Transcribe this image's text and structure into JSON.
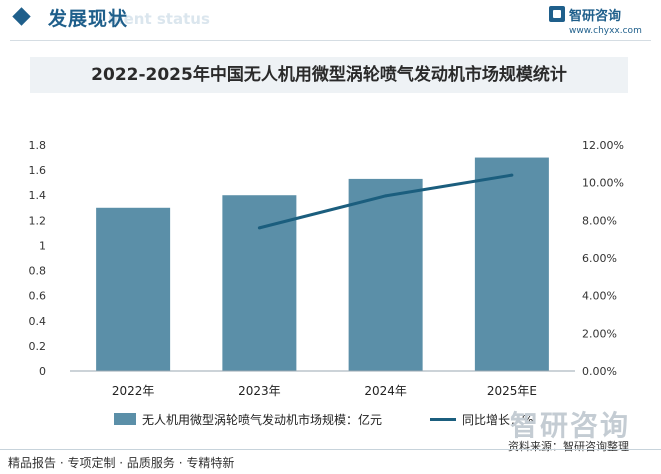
{
  "header": {
    "section_title": "发展现状",
    "section_subtitle": "ment status",
    "brand_name": "智研咨询",
    "brand_url": "www.chyxx.com"
  },
  "colors": {
    "bar": "#5b8fa8",
    "line": "#1b5e7e",
    "accent": "#1f5f8b",
    "title_bar_bg": "#eef2f5"
  },
  "chart_data": {
    "type": "bar",
    "title": "2022-2025年中国无人机用微型涡轮喷气发动机市场规模统计",
    "categories": [
      "2022年",
      "2023年",
      "2024年",
      "2025年E"
    ],
    "series": [
      {
        "name": "无人机用微型涡轮喷气发动机市场规模：亿元",
        "type": "bar",
        "axis": "left",
        "values": [
          1.3,
          1.4,
          1.53,
          1.7
        ]
      },
      {
        "name": "同比增长：%",
        "type": "line",
        "axis": "right",
        "values": [
          null,
          7.6,
          9.3,
          10.4
        ]
      }
    ],
    "y_left": {
      "min": 0,
      "max": 1.8,
      "ticks": [
        "0",
        "0.2",
        "0.4",
        "0.6",
        "0.8",
        "1",
        "1.2",
        "1.4",
        "1.6",
        "1.8"
      ]
    },
    "y_right": {
      "min": 0,
      "max": 12,
      "ticks": [
        "0.00%",
        "2.00%",
        "4.00%",
        "6.00%",
        "8.00%",
        "10.00%",
        "12.00%"
      ]
    },
    "grid": false,
    "legend_position": "bottom"
  },
  "footer": {
    "left_text": "精品报告 · 专项定制 · 品质服务 · 专精特新",
    "source_text": "资料来源：智研咨询整理",
    "brand_watermark": "智研咨询"
  }
}
